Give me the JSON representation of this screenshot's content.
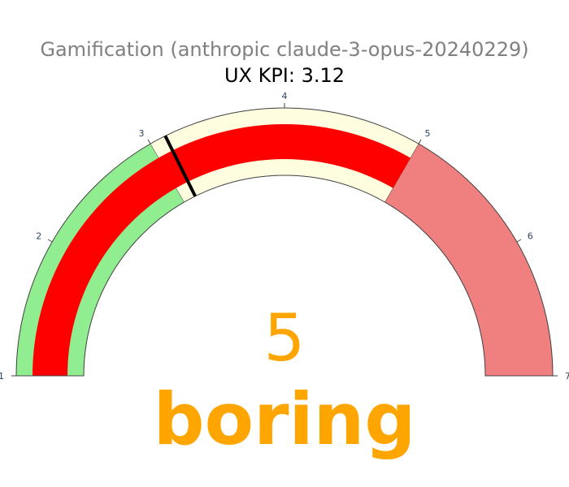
{
  "chart_data": {
    "type": "gauge",
    "title": "Gamification (anthropic claude-3-opus-20240229)",
    "subtitle": "UX KPI: 3.12",
    "value": 5,
    "value_label": "boring",
    "range": [
      1,
      7
    ],
    "tick_labels": [
      "1",
      "2",
      "3",
      "4",
      "5",
      "6",
      "7"
    ],
    "ticks": [
      1,
      2,
      3,
      4,
      5,
      6,
      7
    ],
    "bar": {
      "from": 1,
      "to": 5,
      "color": "#ff0000"
    },
    "steps": [
      {
        "from": 1,
        "to": 3,
        "color": "#90ee90"
      },
      {
        "from": 3,
        "to": 5,
        "color": "#fffde0"
      },
      {
        "from": 5,
        "to": 7,
        "color": "#f08080"
      }
    ],
    "threshold": {
      "value": 3.12,
      "color": "#000000"
    },
    "colors": {
      "title": "#808080",
      "subtitle": "#000000",
      "value": "#ffa500",
      "tick": "#2a3f5f",
      "outline": "#444444"
    }
  }
}
